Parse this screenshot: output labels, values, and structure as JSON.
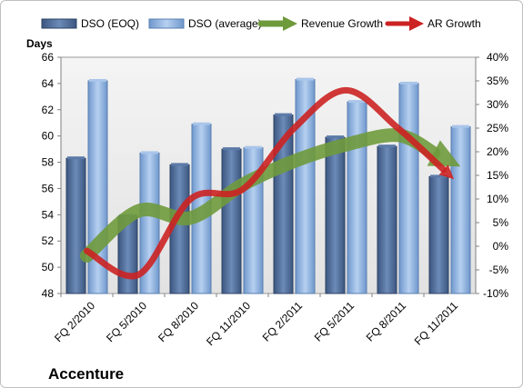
{
  "chart_data": {
    "type": "bar",
    "categories": [
      "FQ 2/2010",
      "FQ 5/2010",
      "FQ 8/2010",
      "FQ 11/2010",
      "FQ 2/2011",
      "FQ 5/2011",
      "FQ 8/2011",
      "FQ 11/2011"
    ],
    "series": [
      {
        "name": "DSO (EOQ)",
        "kind": "bar",
        "axis": "left",
        "color": "#4f6e9e",
        "values": [
          58.3,
          53.9,
          57.8,
          59.0,
          61.6,
          59.9,
          59.2,
          56.9
        ]
      },
      {
        "name": "DSO (average)",
        "kind": "bar",
        "axis": "left",
        "color": "#8eb4e3",
        "values": [
          64.2,
          58.7,
          60.9,
          59.1,
          64.3,
          62.6,
          64.0,
          60.7
        ]
      },
      {
        "name": "Revenue Growth",
        "kind": "arrow-line",
        "axis": "right",
        "color": "#6f9a3c",
        "values": [
          -2,
          7.5,
          6,
          13,
          18,
          21.5,
          23.5,
          18
        ]
      },
      {
        "name": "AR Growth",
        "kind": "arrow-line",
        "axis": "right",
        "color": "#cc2222",
        "values": [
          -1,
          -6,
          10,
          12,
          25,
          33,
          25,
          15
        ]
      }
    ],
    "ylabel": "Days",
    "ylim": [
      48,
      66
    ],
    "yticks": [
      48,
      50,
      52,
      54,
      56,
      58,
      60,
      62,
      64,
      66
    ],
    "y2lim": [
      -10,
      40
    ],
    "y2ticks": [
      "-10%",
      "-5%",
      "0%",
      "5%",
      "10%",
      "15%",
      "20%",
      "25%",
      "30%",
      "35%",
      "40%"
    ],
    "y2step": 5,
    "grid": "none",
    "legend_placement": "top",
    "company": "Accenture"
  }
}
